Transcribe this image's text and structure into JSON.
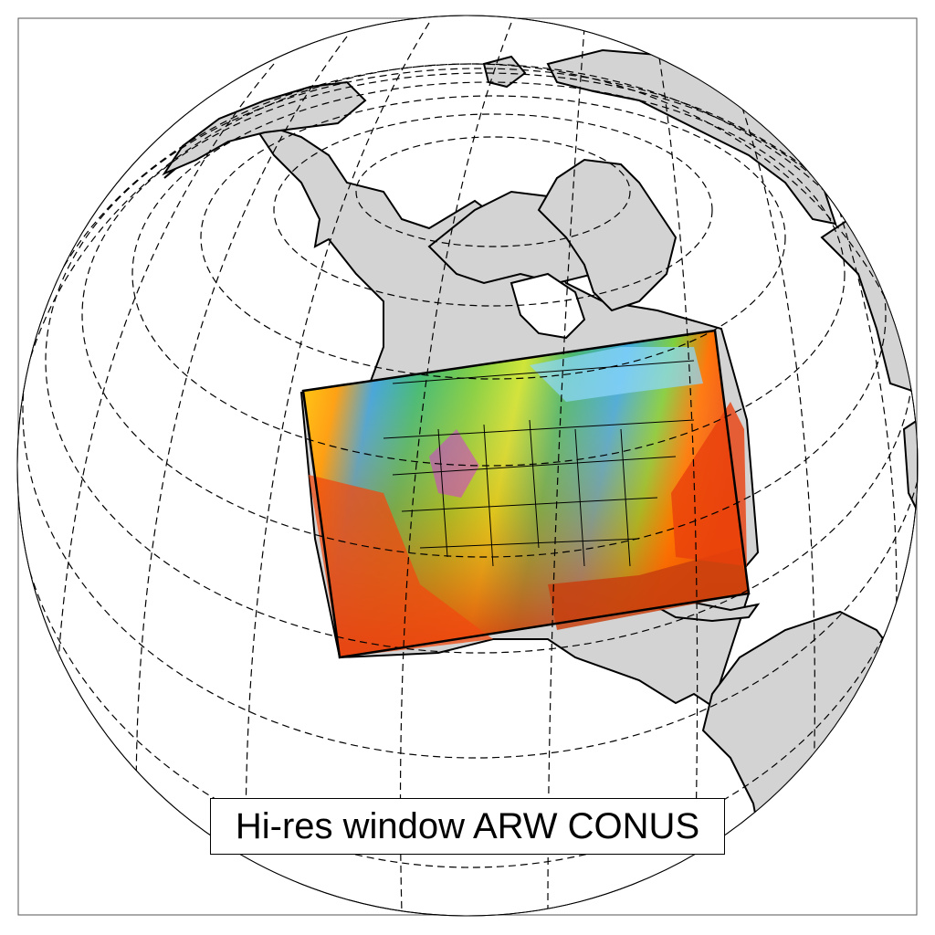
{
  "map": {
    "title": "Hi-res window ARW CONUS",
    "projection": "orthographic",
    "graticule": "dashed",
    "colors": {
      "ocean": "#ffffff",
      "land": "#d3d3d3",
      "coastline": "#000000",
      "frame": "#555555",
      "domain_outline": "#000000"
    },
    "domain_window": {
      "name": "CONUS",
      "field_palette": [
        "#ff00ff",
        "#7fd6ff",
        "#3aa8e0",
        "#33b87a",
        "#7ccf3a",
        "#d8e82a",
        "#ffd400",
        "#ffa000",
        "#ff6a00",
        "#e83010",
        "#c8400e"
      ]
    }
  }
}
